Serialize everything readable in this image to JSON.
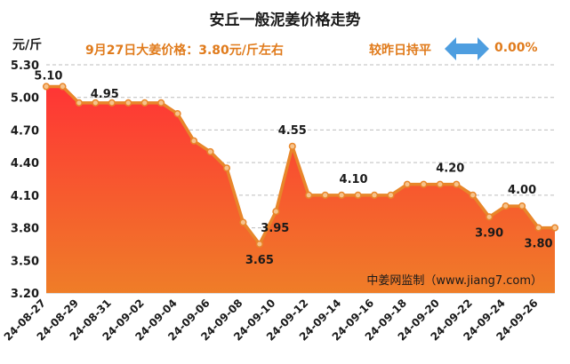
{
  "header": {
    "title": "安丘一般泥姜价格走势",
    "unit": "元/斤",
    "price_note": "9月27日大姜价格：3.80元/斤左右",
    "compare_label": "较昨日持平",
    "compare_value": "0.00%"
  },
  "colors": {
    "line": "#e8862a",
    "marker_fill": "#f6c38c",
    "area_top": "#ff3535",
    "area_bottom": "#ef7d28",
    "accent_text": "#e07b1c",
    "arrow": "#4e9ee0",
    "grid": "#bdbdbd"
  },
  "icons": {
    "compare": "double-arrow-icon"
  },
  "chart_data": {
    "type": "area",
    "title": "安丘一般泥姜价格走势",
    "ylabel": "元/斤",
    "ylim": [
      3.2,
      5.3
    ],
    "yticks": [
      "5.30",
      "5.00",
      "4.70",
      "4.40",
      "4.10",
      "3.80",
      "3.50",
      "3.20"
    ],
    "grid": true,
    "x": [
      "24-08-27",
      "24-08-28",
      "24-08-29",
      "24-08-30",
      "24-08-31",
      "24-09-01",
      "24-09-02",
      "24-09-03",
      "24-09-04",
      "24-09-05",
      "24-09-06",
      "24-09-07",
      "24-09-08",
      "24-09-09",
      "24-09-10",
      "24-09-11",
      "24-09-12",
      "24-09-13",
      "24-09-14",
      "24-09-15",
      "24-09-16",
      "24-09-17",
      "24-09-18",
      "24-09-19",
      "24-09-20",
      "24-09-21",
      "24-09-22",
      "24-09-23",
      "24-09-24",
      "24-09-25",
      "24-09-26",
      "24-09-27"
    ],
    "values": [
      5.1,
      5.1,
      4.95,
      4.95,
      4.95,
      4.95,
      4.95,
      4.95,
      4.85,
      4.6,
      4.5,
      4.35,
      3.85,
      3.65,
      3.95,
      4.55,
      4.1,
      4.1,
      4.1,
      4.1,
      4.1,
      4.1,
      4.2,
      4.2,
      4.2,
      4.2,
      4.1,
      3.9,
      4.0,
      4.0,
      3.8,
      3.8
    ],
    "xtick_labels": [
      "24-08-27",
      "24-08-29",
      "24-08-31",
      "24-09-02",
      "24-09-04",
      "24-09-06",
      "24-09-08",
      "24-09-10",
      "24-09-12",
      "24-09-14",
      "24-09-16",
      "24-09-18",
      "24-09-20",
      "24-09-22",
      "24-09-24",
      "24-09-26"
    ],
    "data_labels": [
      {
        "index": 1,
        "text": "5.10"
      },
      {
        "index": 4,
        "text": "4.95"
      },
      {
        "index": 13,
        "text": "3.65"
      },
      {
        "index": 14,
        "text": "3.95"
      },
      {
        "index": 15,
        "text": "4.55"
      },
      {
        "index": 19,
        "text": "4.10"
      },
      {
        "index": 25,
        "text": "4.20"
      },
      {
        "index": 27,
        "text": "3.90"
      },
      {
        "index": 29,
        "text": "4.00"
      },
      {
        "index": 30,
        "text": "3.80"
      }
    ],
    "watermark": "中姜网监制（www.jiang7.com）"
  }
}
